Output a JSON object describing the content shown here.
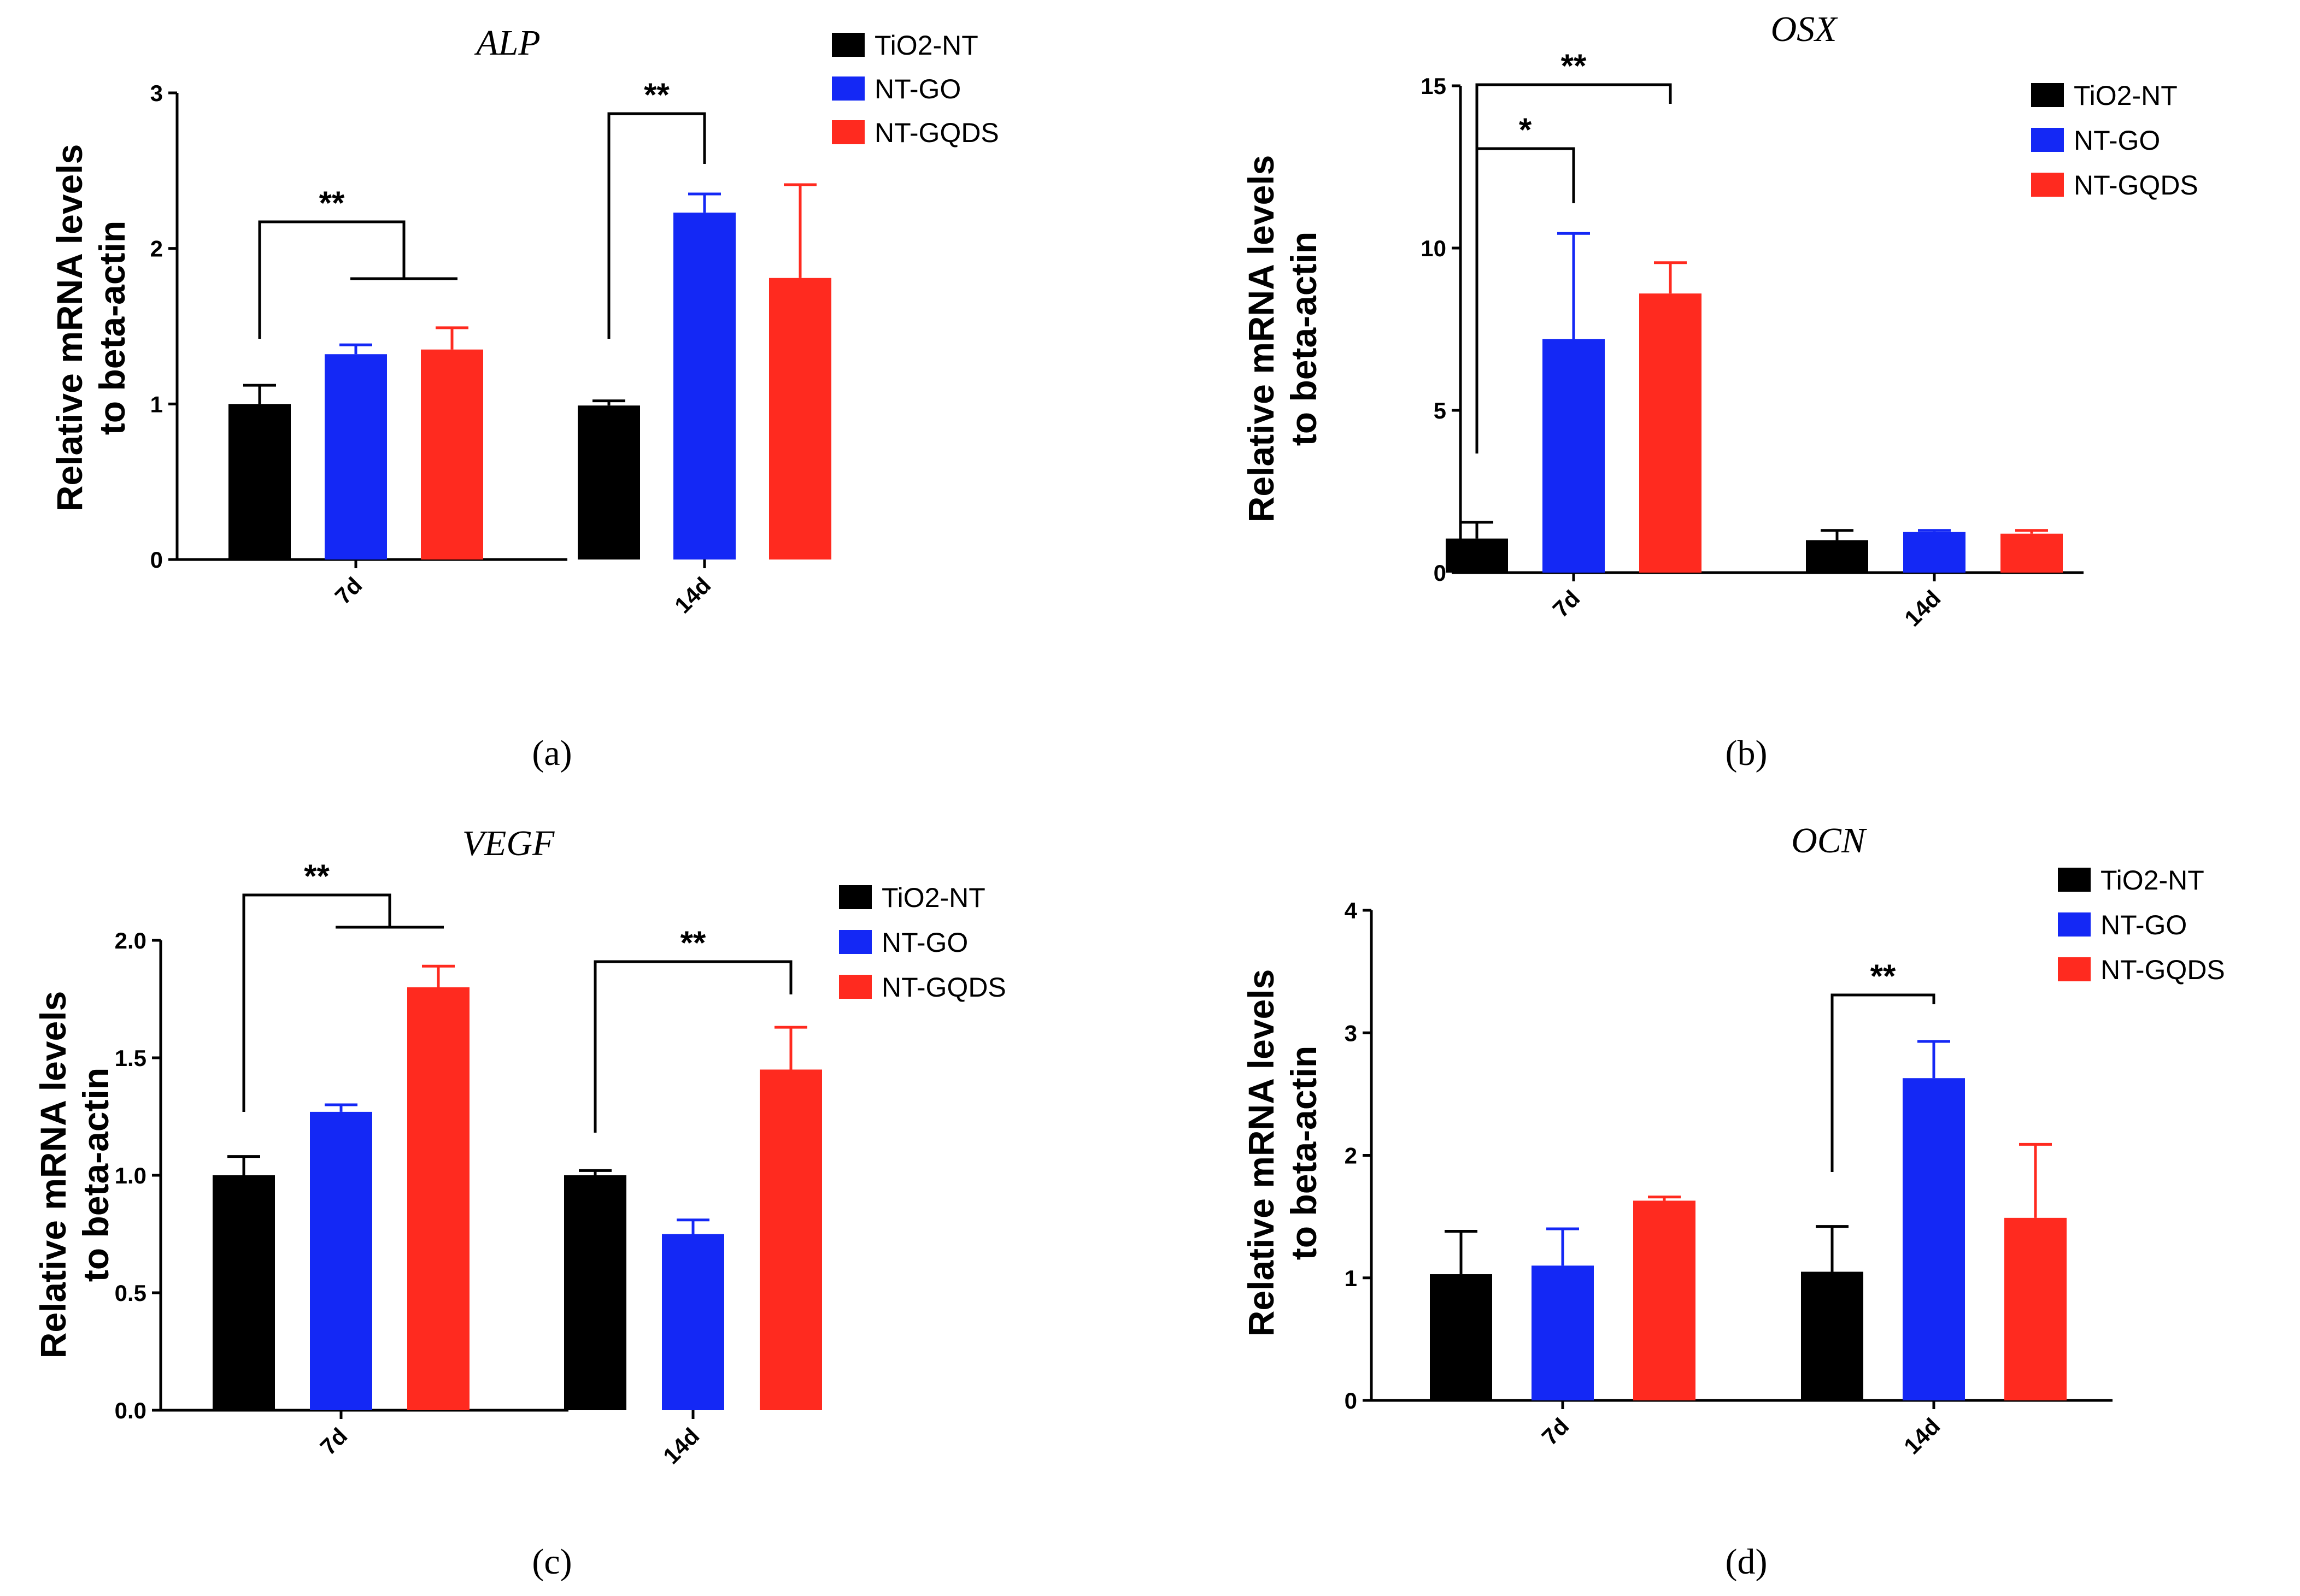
{
  "chart_data": [
    {
      "panel": "a",
      "type": "bar",
      "title": "ALP",
      "ylabel_lines": [
        "Relative mRNA levels",
        "to beta-actin"
      ],
      "categories": [
        "7d",
        "14d"
      ],
      "yticks": [
        "0",
        "1",
        "2",
        "3"
      ],
      "ylim": [
        0,
        3
      ],
      "series": [
        {
          "name": "TiO2-NT",
          "values": [
            1.0,
            0.99
          ],
          "errors": [
            0.12,
            0.03
          ]
        },
        {
          "name": "NT-GO",
          "values": [
            1.32,
            2.23
          ],
          "errors": [
            0.06,
            0.12
          ]
        },
        {
          "name": "NT-GQDS",
          "values": [
            1.35,
            1.81
          ],
          "errors": [
            0.14,
            0.6
          ]
        }
      ],
      "significance": [
        {
          "label": "**",
          "category": 0,
          "from_series": 0,
          "to_series": [
            1,
            2
          ]
        },
        {
          "label": "**",
          "category": 1,
          "from_series": 0,
          "to_series": [
            1
          ]
        }
      ],
      "caption": "(a)"
    },
    {
      "panel": "b",
      "type": "bar",
      "title": "OSX",
      "ylabel_lines": [
        "Relative mRNA levels",
        "to beta-actin"
      ],
      "categories": [
        "7d",
        "14d"
      ],
      "yticks": [
        "0",
        "5",
        "10",
        "15"
      ],
      "ylim": [
        0,
        15
      ],
      "series": [
        {
          "name": "TiO2-NT",
          "values": [
            1.05,
            1.0
          ],
          "errors": [
            0.5,
            0.3
          ]
        },
        {
          "name": "NT-GO",
          "values": [
            7.2,
            1.25
          ],
          "errors": [
            3.25,
            0.05
          ]
        },
        {
          "name": "NT-GQDS",
          "values": [
            8.6,
            1.2
          ],
          "errors": [
            0.95,
            0.1
          ]
        }
      ],
      "significance": [
        {
          "label": "**",
          "category": 0,
          "from_series": 0,
          "to_series": [
            2
          ]
        },
        {
          "label": "*",
          "category": 0,
          "from_series": 0,
          "to_series": [
            1
          ]
        }
      ],
      "caption": "(b)"
    },
    {
      "panel": "c",
      "type": "bar",
      "title": "VEGF",
      "ylabel_lines": [
        "Relative mRNA levels",
        "to beta-actin"
      ],
      "categories": [
        "7d",
        "14d"
      ],
      "yticks": [
        "0.0",
        "0.5",
        "1.0",
        "1.5",
        "2.0"
      ],
      "ylim": [
        0,
        2
      ],
      "series": [
        {
          "name": "TiO2-NT",
          "values": [
            1.0,
            1.0
          ],
          "errors": [
            0.08,
            0.02
          ]
        },
        {
          "name": "NT-GO",
          "values": [
            1.27,
            0.75
          ],
          "errors": [
            0.03,
            0.06
          ]
        },
        {
          "name": "NT-GQDS",
          "values": [
            1.8,
            1.45
          ],
          "errors": [
            0.09,
            0.18
          ]
        }
      ],
      "significance": [
        {
          "label": "**",
          "category": 0,
          "from_series": 0,
          "to_series": [
            1,
            2
          ]
        },
        {
          "label": "**",
          "category": 1,
          "from_series": 0,
          "to_series": [
            2
          ]
        }
      ],
      "caption": "(c)"
    },
    {
      "panel": "d",
      "type": "bar",
      "title": "OCN",
      "ylabel_lines": [
        "Relative mRNA levels",
        "to beta-actin"
      ],
      "categories": [
        "7d",
        "14d"
      ],
      "yticks": [
        "0",
        "1",
        "2",
        "3",
        "4"
      ],
      "ylim": [
        0,
        4
      ],
      "series": [
        {
          "name": "TiO2-NT",
          "values": [
            1.03,
            1.05
          ],
          "errors": [
            0.35,
            0.37
          ]
        },
        {
          "name": "NT-GO",
          "values": [
            1.1,
            2.63
          ],
          "errors": [
            0.3,
            0.3
          ]
        },
        {
          "name": "NT-GQDS",
          "values": [
            1.63,
            1.49
          ],
          "errors": [
            0.03,
            0.6
          ]
        }
      ],
      "significance": [
        {
          "label": "**",
          "category": 1,
          "from_series": 0,
          "to_series": [
            1
          ]
        }
      ],
      "caption": "(d)"
    }
  ],
  "colors": {
    "TiO2-NT": "#000000",
    "NT-GO": "#1428f5",
    "NT-GQDS": "#ff2a1f"
  }
}
